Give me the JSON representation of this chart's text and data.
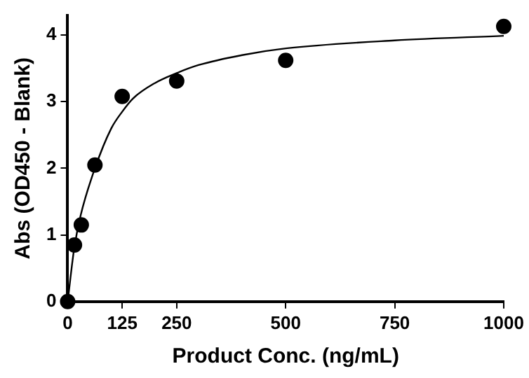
{
  "chart_data": {
    "type": "scatter",
    "xlabel": "Product Conc. (ng/mL)",
    "ylabel": "Abs (OD450 - Blank)",
    "xlim": [
      0,
      1000
    ],
    "ylim": [
      0,
      4.3
    ],
    "xticks": [
      0,
      125,
      250,
      500,
      750,
      1000
    ],
    "yticks": [
      0,
      1,
      2,
      3,
      4
    ],
    "grid": false,
    "legend": false,
    "series": [
      {
        "type": "scatter",
        "marker": "circle",
        "color": "#000000",
        "x": [
          0,
          15.6,
          31.25,
          62.5,
          125,
          250,
          500,
          1000
        ],
        "values": [
          0,
          0.85,
          1.15,
          2.05,
          3.08,
          3.31,
          3.62,
          4.13
        ]
      },
      {
        "type": "line",
        "marker": "none",
        "color": "#000000",
        "x": [
          0,
          15,
          30,
          62.5,
          100,
          125,
          150,
          200,
          250,
          300,
          400,
          500,
          750,
          1000
        ],
        "values": [
          0,
          0.8,
          1.3,
          2.0,
          2.6,
          2.85,
          3.05,
          3.28,
          3.43,
          3.55,
          3.7,
          3.8,
          3.92,
          3.99
        ]
      }
    ]
  }
}
